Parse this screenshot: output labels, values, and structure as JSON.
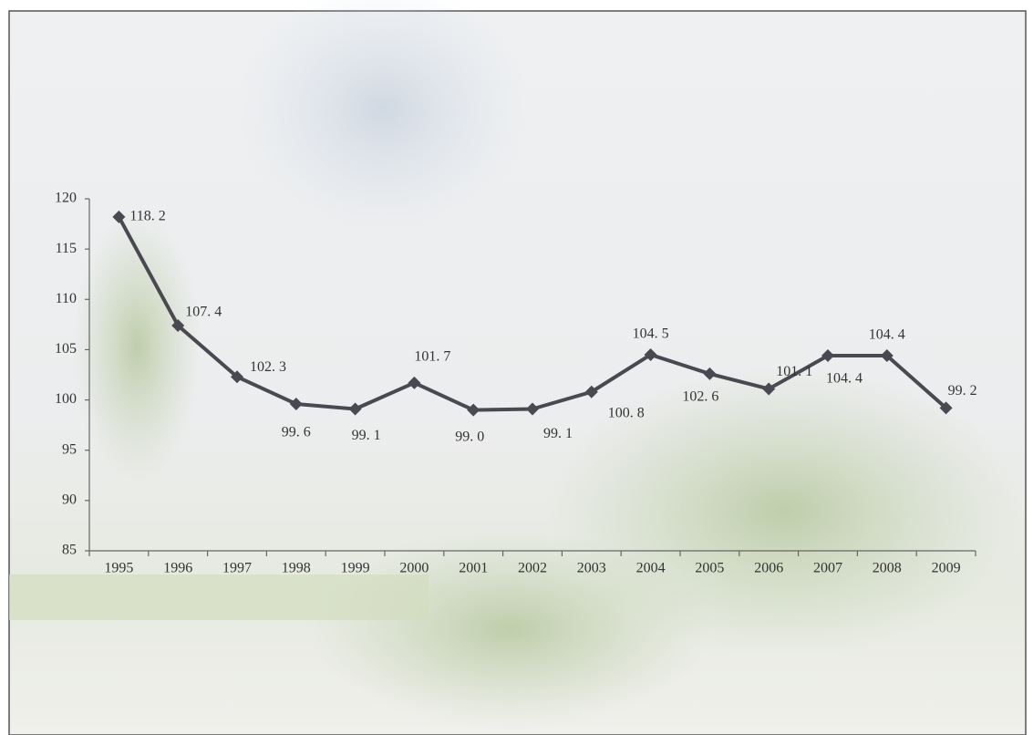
{
  "chart_data": {
    "type": "line",
    "categories": [
      "1995",
      "1996",
      "1997",
      "1998",
      "1999",
      "2000",
      "2001",
      "2002",
      "2003",
      "2004",
      "2005",
      "2006",
      "2007",
      "2008",
      "2009"
    ],
    "values": [
      118.2,
      107.4,
      102.3,
      99.6,
      99.1,
      101.7,
      99.0,
      99.1,
      100.8,
      104.5,
      102.6,
      101.1,
      104.4,
      104.4,
      99.2
    ],
    "value_labels": [
      "118. 2",
      "107. 4",
      "102. 3",
      "99. 6",
      "99. 1",
      "101. 7",
      "99. 0",
      "99. 1",
      "100. 8",
      "104. 5",
      "102. 6",
      "101. 1",
      "104. 4",
      "104. 4",
      "99. 2"
    ],
    "color": "#4a4850",
    "ylim": [
      85,
      120
    ],
    "yticks": [
      85,
      90,
      95,
      100,
      105,
      110,
      115,
      120
    ]
  }
}
